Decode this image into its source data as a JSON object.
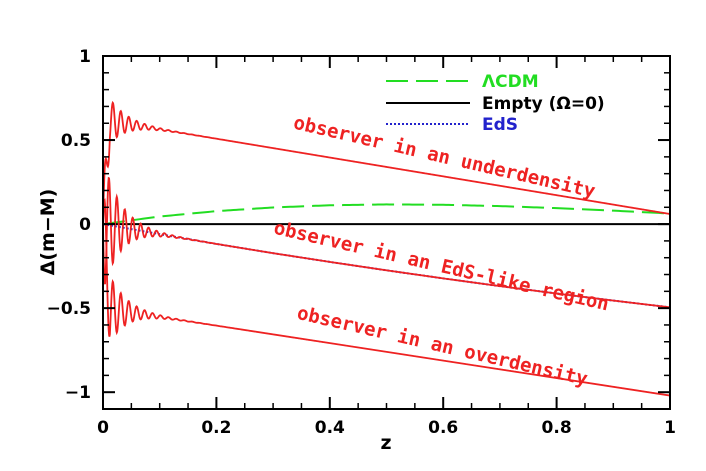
{
  "chart_data": {
    "type": "line",
    "title": "",
    "xlabel": "z",
    "ylabel": "Δ(m−M)",
    "xlim": [
      0,
      1
    ],
    "ylim": [
      -1.1,
      1
    ],
    "xticks": [
      0,
      0.2,
      0.4,
      0.6,
      0.8,
      1
    ],
    "xtick_labels": [
      "0",
      "0.2",
      "0.4",
      "0.6",
      "0.8",
      "1"
    ],
    "yticks": [
      -1,
      -0.5,
      0,
      0.5,
      1
    ],
    "ytick_labels": [
      "−1",
      "−0.5",
      "0",
      "0.5",
      "1"
    ],
    "grid": false,
    "legend_position": "top-right",
    "colors": {
      "lcdm": "#22dd22",
      "empty": "#000000",
      "eds": "#2222cc",
      "observer": "#ee2222"
    },
    "series": [
      {
        "name": "ΛCDM",
        "style": "dashed",
        "color": "#22dd22",
        "x": [
          0,
          0.1,
          0.2,
          0.3,
          0.4,
          0.5,
          0.6,
          0.7,
          0.8,
          0.9,
          1.0
        ],
        "y": [
          0,
          0.045,
          0.077,
          0.099,
          0.112,
          0.117,
          0.115,
          0.107,
          0.095,
          0.08,
          0.063
        ]
      },
      {
        "name": "Empty (Ω=0)",
        "style": "solid",
        "color": "#000000",
        "x": [
          0,
          1
        ],
        "y": [
          0,
          0
        ]
      },
      {
        "name": "EdS",
        "style": "dotted",
        "color": "#2222cc",
        "x": [
          0,
          0.1,
          0.2,
          0.3,
          0.4,
          0.5,
          0.6,
          0.7,
          0.8,
          0.9,
          1.0
        ],
        "y": [
          0,
          -0.06,
          -0.118,
          -0.173,
          -0.225,
          -0.275,
          -0.323,
          -0.369,
          -0.413,
          -0.455,
          -0.495
        ]
      }
    ],
    "observer_curves": [
      {
        "label": "observer in an underdensity",
        "offset": 0.62,
        "slope": -0.56,
        "amp": 0.2
      },
      {
        "label": "observer in an EdS-like region",
        "offset": 0,
        "slope": -0.495,
        "amp": 0.4
      },
      {
        "label": "observer in an overdensity",
        "offset": -0.5,
        "slope": -0.52,
        "amp": 0.3
      }
    ]
  }
}
